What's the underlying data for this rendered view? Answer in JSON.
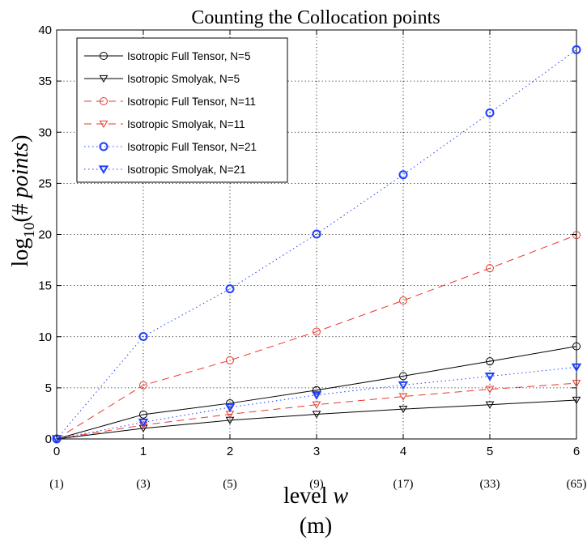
{
  "chart_data": {
    "type": "line",
    "title": "Counting the Collocation points",
    "xlabel": "level w",
    "xlabel_secondary": "(m)",
    "ylabel": "log10(# points)",
    "x": [
      0,
      1,
      2,
      3,
      4,
      5,
      6
    ],
    "x_tick_labels": [
      "0",
      "1",
      "2",
      "3",
      "4",
      "5",
      "6"
    ],
    "x_secondary_tick_labels": [
      "(1)",
      "(3)",
      "(5)",
      "(9)",
      "(17)",
      "(33)",
      "(65)"
    ],
    "y_tick_labels": [
      "0",
      "5",
      "10",
      "15",
      "20",
      "25",
      "30",
      "35",
      "40"
    ],
    "xlim": [
      0,
      6
    ],
    "ylim": [
      0,
      40
    ],
    "grid": true,
    "legend_position": "top-left",
    "series": [
      {
        "name": "Isotropic Full Tensor, N=5",
        "color": "#000000",
        "marker": "circle",
        "dash": "solid",
        "values": [
          0,
          2.39,
          3.49,
          4.77,
          6.15,
          7.59,
          9.06
        ]
      },
      {
        "name": "Isotropic Smolyak, N=5",
        "color": "#000000",
        "marker": "triangle-down",
        "dash": "solid",
        "values": [
          0,
          1.04,
          1.83,
          2.42,
          2.92,
          3.35,
          3.8
        ]
      },
      {
        "name": "Isotropic Full Tensor, N=11",
        "color": "#e8392b",
        "marker": "circle",
        "dash": "dashed",
        "values": [
          0,
          5.25,
          7.69,
          10.5,
          13.54,
          16.7,
          19.94
        ]
      },
      {
        "name": "Isotropic Smolyak, N=11",
        "color": "#e8392b",
        "marker": "triangle-down",
        "dash": "dashed",
        "values": [
          0,
          1.36,
          2.42,
          3.35,
          4.15,
          4.86,
          5.45
        ]
      },
      {
        "name": "Isotropic Full Tensor, N=21",
        "color": "#1f3fff",
        "marker": "circle",
        "dash": "dotted",
        "values": [
          0,
          10.02,
          14.68,
          20.04,
          25.84,
          31.89,
          38.07
        ]
      },
      {
        "name": "Isotropic Smolyak, N=21",
        "color": "#1f3fff",
        "marker": "triangle-down",
        "dash": "dotted",
        "values": [
          0,
          1.63,
          3.09,
          4.3,
          5.27,
          6.13,
          7.02
        ]
      }
    ]
  }
}
